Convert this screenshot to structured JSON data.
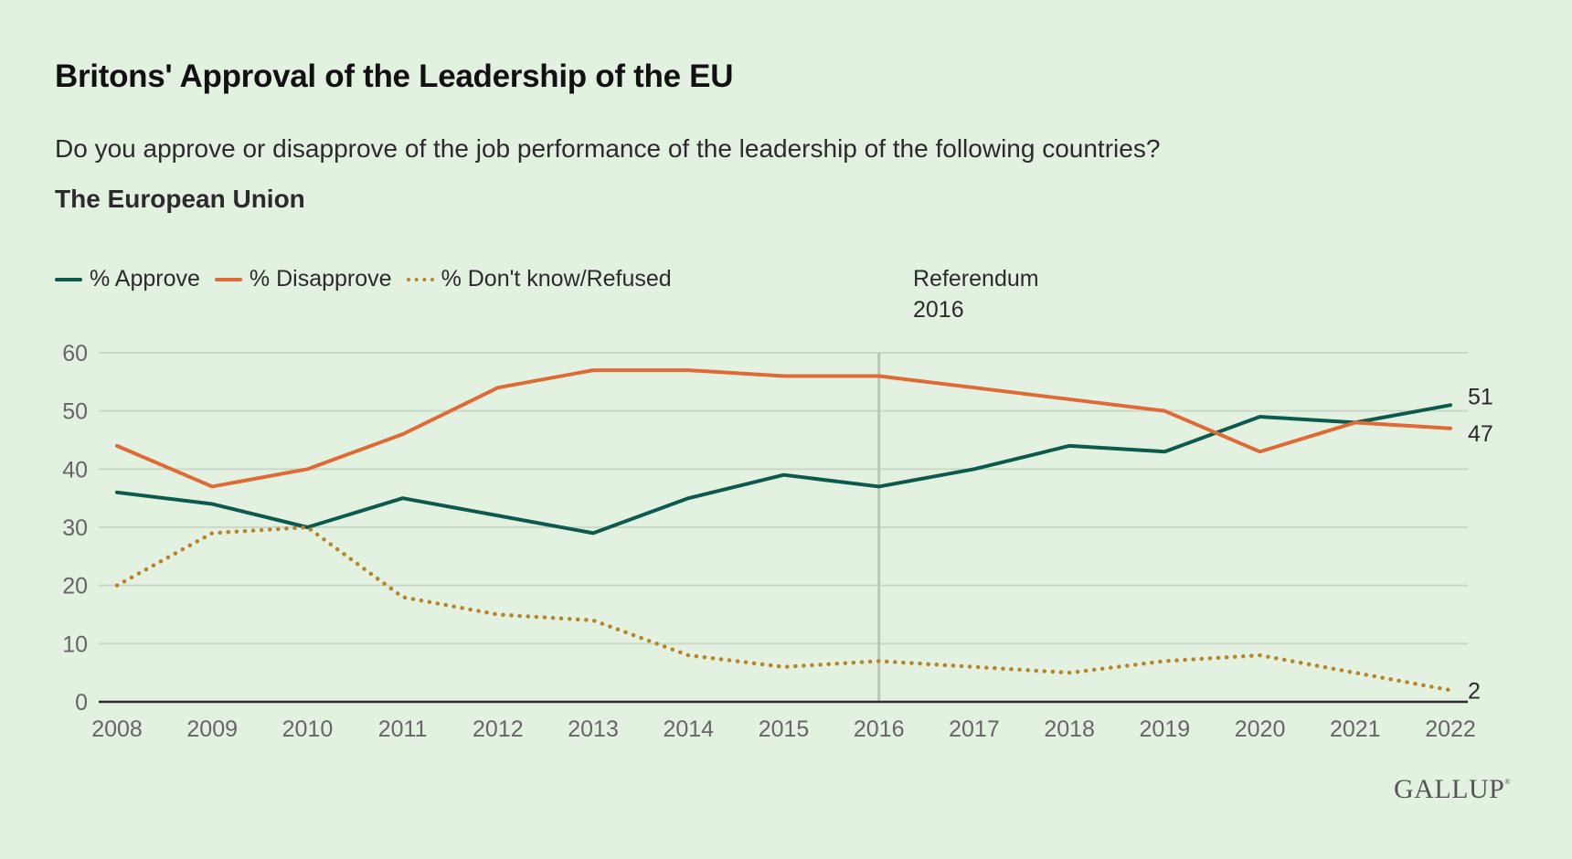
{
  "header": {
    "title": "Britons' Approval of the Leadership of the EU",
    "subtitle": "Do you approve or disapprove of the job performance of the leadership of the following countries?",
    "subhead": "The European Union"
  },
  "annotation": {
    "line1": "Referendum",
    "line2": "2016",
    "x": 2016
  },
  "logo": {
    "text": "GALLUP",
    "mark": "®"
  },
  "colors": {
    "background": "#e3f1e1",
    "approve": "#0b5a4c",
    "disapprove": "#e06a35",
    "dont_know": "#b5852a",
    "grid": "#cbd8c8",
    "reference_line": "#bac6b6",
    "axis": "#2b2b2b",
    "tick_text": "#666666"
  },
  "chart_data": {
    "type": "line",
    "title": "Britons' Approval of the Leadership of the EU",
    "subtitle": "Do you approve or disapprove of the job performance of the leadership of the following countries?",
    "xlabel": "",
    "ylabel": "",
    "x": [
      2008,
      2009,
      2010,
      2011,
      2012,
      2013,
      2014,
      2015,
      2016,
      2017,
      2018,
      2019,
      2020,
      2021,
      2022
    ],
    "ylim": [
      0,
      60
    ],
    "yticks": [
      0,
      10,
      20,
      30,
      40,
      50,
      60
    ],
    "grid": true,
    "legend_position": "top-left",
    "series": [
      {
        "name": "% Approve",
        "key": "approve",
        "style": "solid",
        "values": [
          36,
          34,
          30,
          35,
          32,
          29,
          35,
          39,
          37,
          40,
          44,
          43,
          49,
          48,
          51
        ],
        "end_label": "51"
      },
      {
        "name": "% Disapprove",
        "key": "disapprove",
        "style": "solid",
        "values": [
          44,
          37,
          40,
          46,
          54,
          57,
          57,
          56,
          56,
          54,
          52,
          50,
          43,
          48,
          47
        ],
        "end_label": "47"
      },
      {
        "name": "% Don't know/Refused",
        "key": "dont_know",
        "style": "dotted",
        "values": [
          20,
          29,
          30,
          18,
          15,
          14,
          8,
          6,
          7,
          6,
          5,
          7,
          8,
          5,
          2
        ],
        "end_label": "2"
      }
    ],
    "annotations": [
      {
        "x": 2016,
        "text": "Referendum 2016",
        "type": "vertical-line"
      }
    ]
  }
}
